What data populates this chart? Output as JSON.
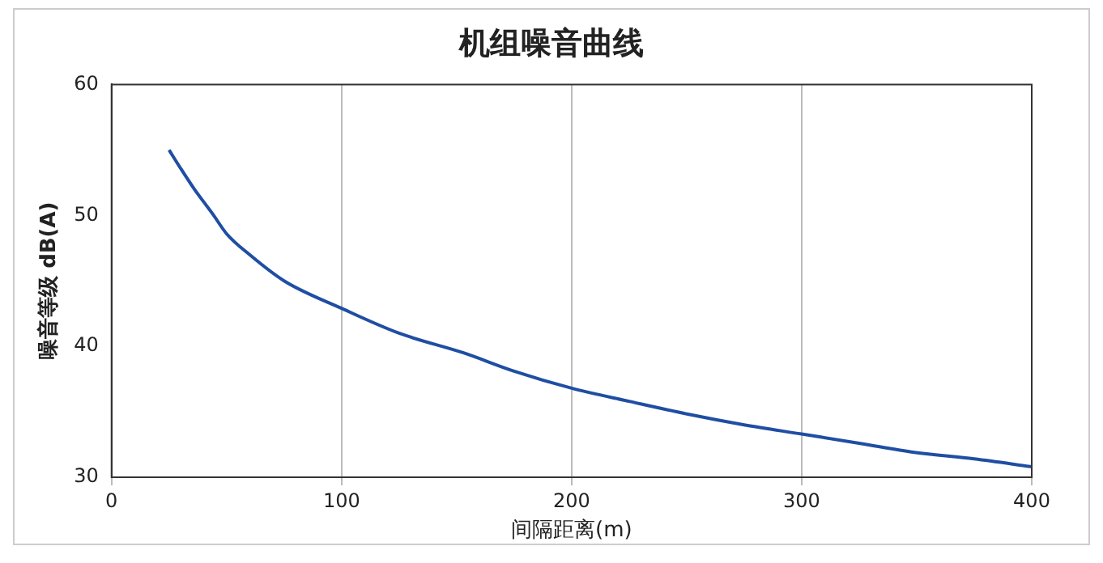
{
  "chart_data": {
    "type": "line",
    "title": "机组噪音曲线",
    "xlabel": "间隔距离(m)",
    "ylabel": "噪音等级 dB(A)",
    "x": [
      25,
      30,
      36,
      44,
      50,
      60,
      75,
      100,
      125,
      153,
      175,
      200,
      225,
      251,
      275,
      300,
      325,
      349,
      375,
      400
    ],
    "series": [
      {
        "color": "#1f4ea3",
        "values": [
          55,
          53.6,
          52,
          50.1,
          48.6,
          47,
          45,
          42.9,
          41,
          39.5,
          38.1,
          36.8,
          35.8,
          34.8,
          34,
          33.3,
          32.6,
          31.9,
          31.4,
          30.8
        ]
      }
    ],
    "xlim": [
      0,
      400
    ],
    "xticks": [
      0,
      100,
      200,
      300,
      400
    ],
    "ylim": [
      30,
      60
    ],
    "yticks": [
      30,
      40,
      50,
      60
    ],
    "grid": "x",
    "marker": "none",
    "line_style": "solid",
    "legend": false
  }
}
